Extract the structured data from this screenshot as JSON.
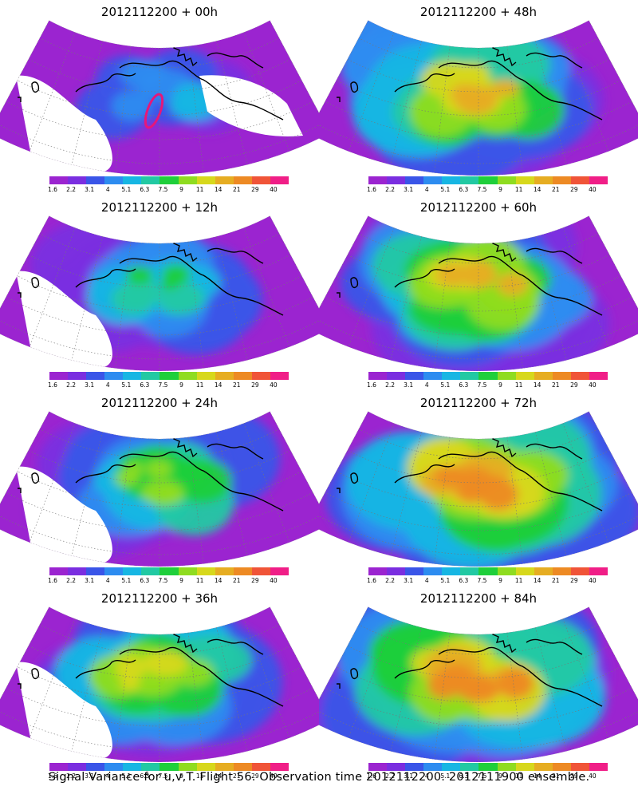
{
  "footer": "Signal Variance for u,v,T. Flight 56. Observation time 2012112200. 2012111900 ensemble.",
  "colorbar": {
    "labels": [
      "1.6",
      "2.2",
      "3.1",
      "4",
      "5.1",
      "6.3",
      "7.5",
      "9",
      "11",
      "14",
      "21",
      "29",
      "40"
    ],
    "colors": [
      "#9b24d0",
      "#7a2ee0",
      "#3a55e8",
      "#2d8cf0",
      "#17b6e3",
      "#22c9a3",
      "#1fcf3b",
      "#8fdc20",
      "#d7d81c",
      "#e6ad22",
      "#ed8a24",
      "#f05438",
      "#f01e87"
    ]
  },
  "panels": [
    {
      "title": "2012112200 + 00h",
      "intensity": 0.12,
      "hotspot": "red-oval"
    },
    {
      "title": "2012112200 + 48h",
      "intensity": 0.62,
      "hotspot": "orange-broad"
    },
    {
      "title": "2012112200 + 12h",
      "intensity": 0.38,
      "hotspot": "orange-center"
    },
    {
      "title": "2012112200 + 60h",
      "intensity": 0.68,
      "hotspot": "orange-broad"
    },
    {
      "title": "2012112200 + 24h",
      "intensity": 0.48,
      "hotspot": "orange-center"
    },
    {
      "title": "2012112200 + 72h",
      "intensity": 0.75,
      "hotspot": "red-center"
    },
    {
      "title": "2012112200 + 36h",
      "intensity": 0.55,
      "hotspot": "orange-center"
    },
    {
      "title": "2012112200 + 84h",
      "intensity": 0.8,
      "hotspot": "red-center"
    }
  ]
}
